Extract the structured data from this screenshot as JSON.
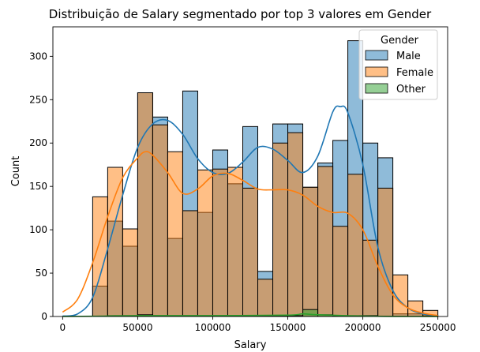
{
  "chart_data": {
    "type": "bar",
    "title": "Distribuição de Salary segmentado por top 3 valores em Gender",
    "xlabel": "Salary",
    "ylabel": "Count",
    "xlim": [
      -6500,
      256500
    ],
    "ylim": [
      0,
      334
    ],
    "xticks": [
      0,
      50000,
      100000,
      150000,
      200000,
      250000
    ],
    "xtick_labels": [
      "0",
      "50000",
      "100000",
      "150000",
      "200000",
      "250000"
    ],
    "yticks": [
      0,
      50,
      100,
      150,
      200,
      250,
      300
    ],
    "ytick_labels": [
      "0",
      "50",
      "100",
      "150",
      "200",
      "250",
      "300"
    ],
    "grid": false,
    "legend": {
      "title": "Gender",
      "placement": "top-right"
    },
    "bin_edges": [
      0,
      10000,
      20000,
      30000,
      40000,
      50000,
      60000,
      70000,
      80000,
      90000,
      100000,
      110000,
      120000,
      130000,
      140000,
      150000,
      160000,
      170000,
      180000,
      190000,
      200000,
      210000,
      220000,
      230000,
      240000,
      250000
    ],
    "series": [
      {
        "name": "Male",
        "color": "#1f77b4",
        "counts": [
          0,
          0,
          35,
          110,
          81,
          258,
          230,
          90,
          260,
          120,
          192,
          153,
          219,
          52,
          222,
          222,
          149,
          177,
          203,
          318,
          200,
          183,
          3,
          3,
          1
        ],
        "kde": [
          [
            0,
            0.5
          ],
          [
            10000,
            3
          ],
          [
            20000,
            22
          ],
          [
            30000,
            78
          ],
          [
            40000,
            140
          ],
          [
            50000,
            195
          ],
          [
            60000,
            222
          ],
          [
            70000,
            226
          ],
          [
            80000,
            210
          ],
          [
            90000,
            182
          ],
          [
            100000,
            166
          ],
          [
            110000,
            165
          ],
          [
            120000,
            178
          ],
          [
            130000,
            195
          ],
          [
            140000,
            193
          ],
          [
            150000,
            180
          ],
          [
            160000,
            166
          ],
          [
            170000,
            185
          ],
          [
            180000,
            236
          ],
          [
            185000,
            242
          ],
          [
            190000,
            235
          ],
          [
            200000,
            175
          ],
          [
            210000,
            80
          ],
          [
            220000,
            30
          ],
          [
            230000,
            10
          ],
          [
            240000,
            3
          ],
          [
            250000,
            1
          ]
        ]
      },
      {
        "name": "Female",
        "color": "#ff7f0e",
        "counts": [
          0,
          0,
          138,
          172,
          101,
          258,
          221,
          190,
          122,
          169,
          170,
          172,
          148,
          43,
          200,
          212,
          149,
          173,
          104,
          164,
          88,
          148,
          48,
          18,
          7
        ],
        "kde": [
          [
            0,
            5
          ],
          [
            10000,
            20
          ],
          [
            20000,
            62
          ],
          [
            30000,
            115
          ],
          [
            40000,
            160
          ],
          [
            50000,
            183
          ],
          [
            55000,
            190
          ],
          [
            60000,
            186
          ],
          [
            70000,
            166
          ],
          [
            80000,
            142
          ],
          [
            90000,
            147
          ],
          [
            100000,
            162
          ],
          [
            110000,
            165
          ],
          [
            120000,
            157
          ],
          [
            130000,
            147
          ],
          [
            140000,
            146
          ],
          [
            150000,
            146
          ],
          [
            160000,
            140
          ],
          [
            170000,
            127
          ],
          [
            180000,
            120
          ],
          [
            190000,
            119
          ],
          [
            200000,
            100
          ],
          [
            210000,
            58
          ],
          [
            220000,
            25
          ],
          [
            230000,
            10
          ],
          [
            240000,
            4
          ],
          [
            250000,
            1
          ]
        ]
      },
      {
        "name": "Other",
        "color": "#2ca02c",
        "counts": [
          0,
          0,
          0,
          1,
          1,
          2,
          1,
          1,
          1,
          1,
          1,
          1,
          1,
          1,
          1,
          1,
          8,
          2,
          1,
          1,
          1,
          0,
          0,
          0,
          0
        ],
        "kde": [
          [
            0,
            0
          ],
          [
            20000,
            0.3
          ],
          [
            50000,
            1
          ],
          [
            100000,
            1
          ],
          [
            150000,
            1.5
          ],
          [
            160000,
            3
          ],
          [
            170000,
            2
          ],
          [
            200000,
            0.5
          ],
          [
            230000,
            0
          ],
          [
            250000,
            0
          ]
        ]
      }
    ]
  }
}
